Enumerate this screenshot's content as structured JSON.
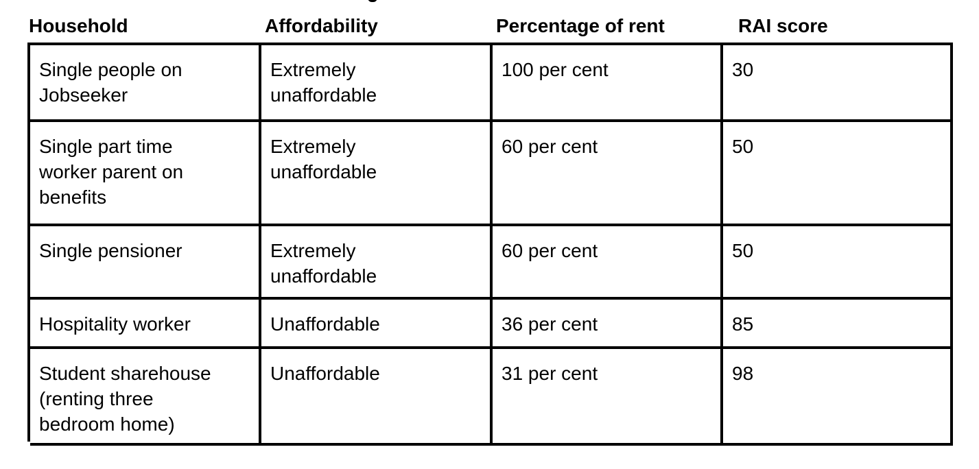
{
  "table": {
    "headers": [
      "Household",
      "Affordability",
      "Percentage of rent",
      "RAI score"
    ],
    "rows": [
      {
        "household": [
          "Single people on",
          "Jobseeker"
        ],
        "affordability": [
          "Extremely",
          "unaffordable"
        ],
        "percentage": [
          "100 per cent"
        ],
        "rai": [
          "30"
        ]
      },
      {
        "household": [
          "Single part time",
          "worker parent on",
          "benefits"
        ],
        "affordability": [
          "Extremely",
          "unaffordable"
        ],
        "percentage": [
          "60 per cent"
        ],
        "rai": [
          "50"
        ]
      },
      {
        "household": [
          "Single pensioner"
        ],
        "affordability": [
          "Extremely",
          "unaffordable"
        ],
        "percentage": [
          "60 per cent"
        ],
        "rai": [
          "50"
        ]
      },
      {
        "household": [
          "Hospitality worker"
        ],
        "affordability": [
          "Unaffordable"
        ],
        "percentage": [
          "36 per cent"
        ],
        "rai": [
          "85"
        ]
      },
      {
        "household": [
          "Student sharehouse",
          "(renting three",
          "bedroom home)"
        ],
        "affordability": [
          "Unaffordable"
        ],
        "percentage": [
          "31 per cent"
        ],
        "rai": [
          "98"
        ]
      }
    ]
  }
}
